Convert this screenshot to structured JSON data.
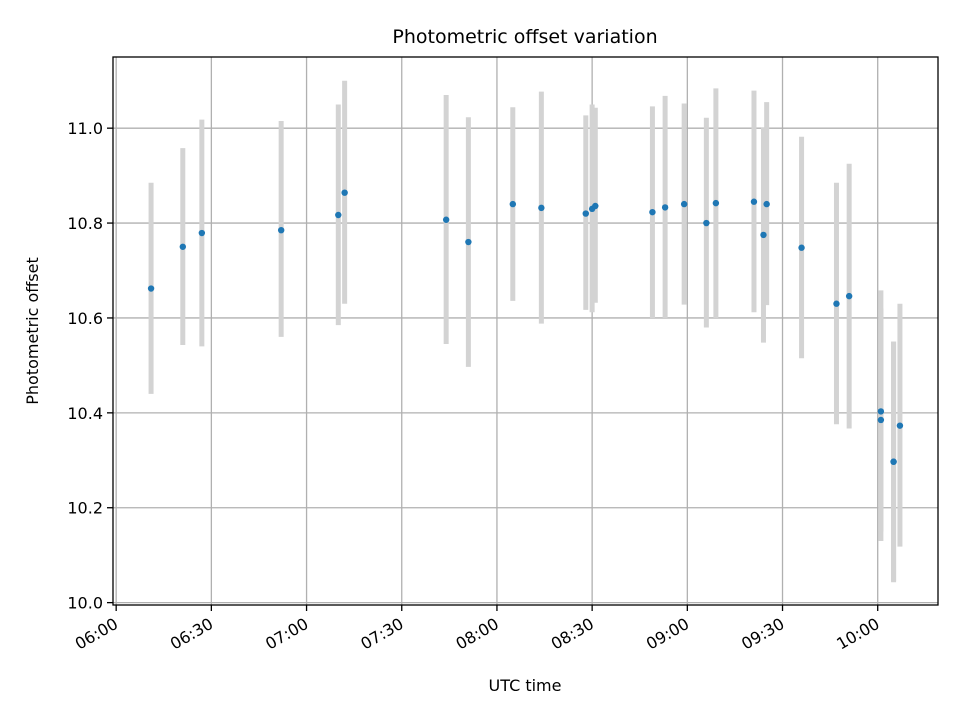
{
  "chart_data": {
    "type": "scatter",
    "title": "Photometric offset variation",
    "xlabel": "UTC time",
    "ylabel": "Photometric offset",
    "x_unit": "HH:MM UTC",
    "xlim": [
      "05:59",
      "10:19"
    ],
    "ylim": [
      9.995,
      11.15
    ],
    "x_ticks": [
      "06:00",
      "06:30",
      "07:00",
      "07:30",
      "08:00",
      "08:30",
      "09:00",
      "09:30",
      "10:00"
    ],
    "y_ticks": [
      "10.0",
      "10.2",
      "10.4",
      "10.6",
      "10.8",
      "11.0"
    ],
    "grid": true,
    "series": [
      {
        "point_color": "#1f77b4",
        "errorbar_color": "#d3d3d3",
        "points": [
          {
            "x": "06:11",
            "y": 10.662,
            "lo": 10.44,
            "hi": 10.885
          },
          {
            "x": "06:21",
            "y": 10.75,
            "lo": 10.543,
            "hi": 10.958
          },
          {
            "x": "06:27",
            "y": 10.779,
            "lo": 10.54,
            "hi": 11.018
          },
          {
            "x": "06:52",
            "y": 10.785,
            "lo": 10.56,
            "hi": 11.015
          },
          {
            "x": "07:10",
            "y": 10.817,
            "lo": 10.585,
            "hi": 11.05
          },
          {
            "x": "07:12",
            "y": 10.864,
            "lo": 10.63,
            "hi": 11.1
          },
          {
            "x": "07:44",
            "y": 10.807,
            "lo": 10.545,
            "hi": 11.07
          },
          {
            "x": "07:51",
            "y": 10.76,
            "lo": 10.497,
            "hi": 11.023
          },
          {
            "x": "08:05",
            "y": 10.84,
            "lo": 10.636,
            "hi": 11.044
          },
          {
            "x": "08:14",
            "y": 10.832,
            "lo": 10.588,
            "hi": 11.077
          },
          {
            "x": "08:28",
            "y": 10.82,
            "lo": 10.617,
            "hi": 11.027
          },
          {
            "x": "08:30",
            "y": 10.83,
            "lo": 10.612,
            "hi": 11.05
          },
          {
            "x": "08:31",
            "y": 10.836,
            "lo": 10.632,
            "hi": 11.043
          },
          {
            "x": "08:49",
            "y": 10.823,
            "lo": 10.6,
            "hi": 11.046
          },
          {
            "x": "08:53",
            "y": 10.833,
            "lo": 10.6,
            "hi": 11.068
          },
          {
            "x": "08:59",
            "y": 10.84,
            "lo": 10.628,
            "hi": 11.052
          },
          {
            "x": "09:06",
            "y": 10.8,
            "lo": 10.58,
            "hi": 11.022
          },
          {
            "x": "09:09",
            "y": 10.842,
            "lo": 10.6,
            "hi": 11.084
          },
          {
            "x": "09:21",
            "y": 10.845,
            "lo": 10.612,
            "hi": 11.079
          },
          {
            "x": "09:24",
            "y": 10.775,
            "lo": 10.548,
            "hi": 11.002
          },
          {
            "x": "09:25",
            "y": 10.84,
            "lo": 10.627,
            "hi": 11.055
          },
          {
            "x": "09:36",
            "y": 10.748,
            "lo": 10.515,
            "hi": 10.982
          },
          {
            "x": "09:47",
            "y": 10.63,
            "lo": 10.376,
            "hi": 10.885
          },
          {
            "x": "09:51",
            "y": 10.646,
            "lo": 10.367,
            "hi": 10.925
          },
          {
            "x": "10:01",
            "y": 10.385,
            "lo": 10.15,
            "hi": 10.62
          },
          {
            "x": "10:01",
            "y": 10.403,
            "lo": 10.13,
            "hi": 10.658
          },
          {
            "x": "10:05",
            "y": 10.297,
            "lo": 10.043,
            "hi": 10.55
          },
          {
            "x": "10:05",
            "y": 10.297,
            "lo": 10.045,
            "hi": 10.55
          },
          {
            "x": "10:07",
            "y": 10.373,
            "lo": 10.118,
            "hi": 10.63
          }
        ]
      }
    ]
  }
}
